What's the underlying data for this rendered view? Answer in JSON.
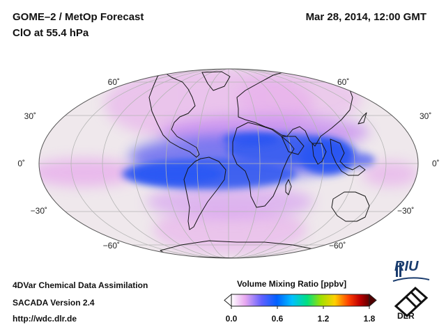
{
  "header": {
    "title": "GOME–2 / MetOp Forecast",
    "subtitle": "ClO at 55.4 hPa",
    "datetime": "Mar 28, 2014, 12:00 GMT"
  },
  "map": {
    "projection": "hammer-aitoff",
    "lat_labels": [
      "60˚",
      "30˚",
      "0˚",
      "−30˚",
      "−60˚"
    ],
    "colors": {
      "ocean": "#efe8ec",
      "coast": "#151515",
      "grid": "#b4b4b4",
      "band": "#3c5cf0"
    }
  },
  "footer": {
    "line1": "4DVar Chemical Data Assimilation",
    "line2": "SACADA Version 2.4",
    "line3": "http://wdc.dlr.de"
  },
  "colorbar": {
    "title": "Volume Mixing Ratio [ppbv]",
    "ticks": [
      "0.0",
      "0.6",
      "1.2",
      "1.8"
    ],
    "range": [
      0,
      1.8
    ],
    "colors": [
      "#ffffff",
      "#e8a8f0",
      "#6060ff",
      "#0060ff",
      "#00c0ff",
      "#00e080",
      "#a0e000",
      "#ffd000",
      "#ff4000",
      "#c00000",
      "#600000"
    ]
  },
  "logos": {
    "riu": "RIU",
    "dlr": "DLR"
  }
}
